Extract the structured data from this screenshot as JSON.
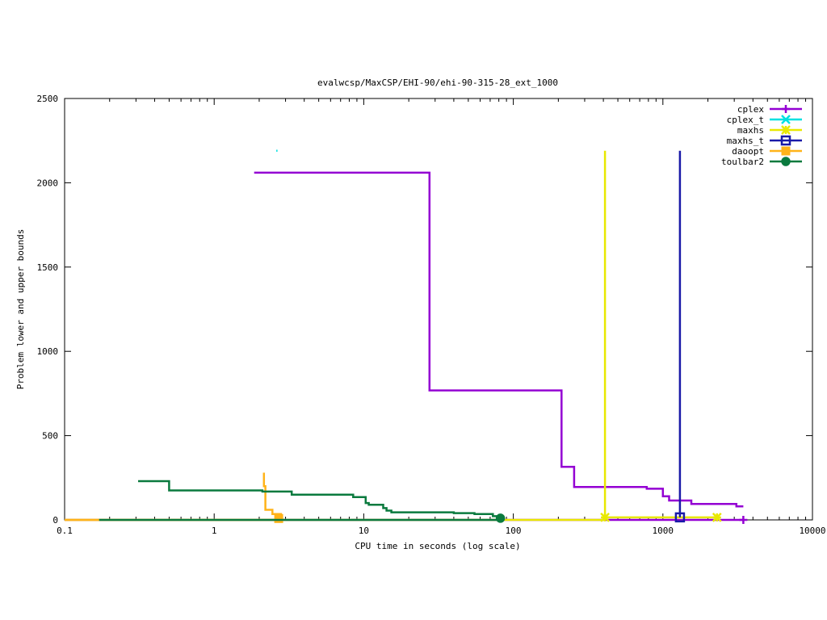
{
  "chart_data": {
    "type": "line",
    "title": "evalwcsp/MaxCSP/EHI-90/ehi-90-315-28_ext_1000",
    "xlabel": "CPU time in seconds (log scale)",
    "ylabel": "Problem lower and upper bounds",
    "x_scale": "log",
    "xlim": [
      0.1,
      10000
    ],
    "ylim": [
      0,
      2500
    ],
    "x_ticks": [
      0.1,
      1,
      10,
      100,
      1000,
      10000
    ],
    "x_tick_labels": [
      "0.1",
      "1",
      "10",
      "100",
      "1000",
      "10000"
    ],
    "y_ticks": [
      0,
      500,
      1000,
      1500,
      2000,
      2500
    ],
    "y_tick_labels": [
      "0",
      "500",
      "1000",
      "1500",
      "2000",
      "2500"
    ],
    "grid": false,
    "legend_position": "top-right",
    "series": [
      {
        "name": "cplex",
        "color": "#9400d3",
        "marker": "plus",
        "lines": [
          [
            [
              1.85,
              2060
            ],
            [
              27.5,
              2060
            ],
            [
              27.5,
              768
            ],
            [
              210,
              768
            ],
            [
              210,
              315
            ],
            [
              255,
              315
            ],
            [
              255,
              195
            ],
            [
              780,
              195
            ],
            [
              780,
              185
            ],
            [
              1000,
              185
            ],
            [
              1000,
              140
            ],
            [
              1100,
              140
            ],
            [
              1100,
              115
            ],
            [
              1550,
              115
            ],
            [
              1550,
              95
            ],
            [
              3100,
              95
            ],
            [
              3100,
              80
            ],
            [
              3450,
              80
            ]
          ],
          [
            [
              0.1,
              0
            ],
            [
              3450,
              0
            ]
          ]
        ],
        "markers": [
          [
            3450,
            0
          ]
        ]
      },
      {
        "name": "cplex_t",
        "color": "#00e0e0",
        "marker": "x",
        "lines": [
          [
            [
              2.6,
              2190
            ],
            [
              2.65,
              2190
            ]
          ]
        ],
        "markers": []
      },
      {
        "name": "maxhs",
        "color": "#e8e800",
        "marker": "star",
        "lines": [
          [
            [
              410,
              2190
            ],
            [
              410,
              15
            ],
            [
              2300,
              15
            ]
          ],
          [
            [
              0.1,
              0
            ],
            [
              410,
              0
            ]
          ]
        ],
        "markers": [
          [
            410,
            15
          ],
          [
            2300,
            15
          ]
        ]
      },
      {
        "name": "maxhs_t",
        "color": "#1a1aa8",
        "marker": "square",
        "lines": [
          [
            [
              1300,
              2190
            ],
            [
              1300,
              15
            ]
          ]
        ],
        "markers": [
          [
            1300,
            15
          ]
        ]
      },
      {
        "name": "daoopt",
        "color": "#ffb319",
        "marker": "filled-square",
        "lines": [
          [
            [
              2.15,
              280
            ],
            [
              2.15,
              200
            ],
            [
              2.2,
              200
            ],
            [
              2.2,
              60
            ],
            [
              2.45,
              60
            ],
            [
              2.45,
              35
            ],
            [
              2.8,
              35
            ],
            [
              2.8,
              5
            ]
          ],
          [
            [
              0.1,
              0
            ],
            [
              2.8,
              0
            ]
          ]
        ],
        "markers": [
          [
            2.7,
            8
          ]
        ]
      },
      {
        "name": "toulbar2",
        "color": "#0a7a3e",
        "marker": "filled-circle",
        "lines": [
          [
            [
              0.31,
              230
            ],
            [
              0.5,
              230
            ],
            [
              0.5,
              175
            ],
            [
              2.1,
              175
            ],
            [
              2.1,
              168
            ],
            [
              3.3,
              168
            ],
            [
              3.3,
              150
            ],
            [
              8.5,
              150
            ],
            [
              8.5,
              135
            ],
            [
              10.3,
              135
            ],
            [
              10.3,
              100
            ],
            [
              10.8,
              100
            ],
            [
              10.8,
              90
            ],
            [
              13.5,
              90
            ],
            [
              13.5,
              70
            ],
            [
              14.2,
              70
            ],
            [
              14.2,
              55
            ],
            [
              15.3,
              55
            ],
            [
              15.3,
              45
            ],
            [
              40,
              45
            ],
            [
              40,
              40
            ],
            [
              55,
              40
            ],
            [
              55,
              35
            ],
            [
              73,
              35
            ],
            [
              73,
              22
            ],
            [
              80,
              22
            ],
            [
              80,
              10
            ],
            [
              84,
              10
            ]
          ],
          [
            [
              0.17,
              0
            ],
            [
              84,
              0
            ]
          ]
        ],
        "markers": [
          [
            82,
            10
          ]
        ]
      }
    ]
  }
}
